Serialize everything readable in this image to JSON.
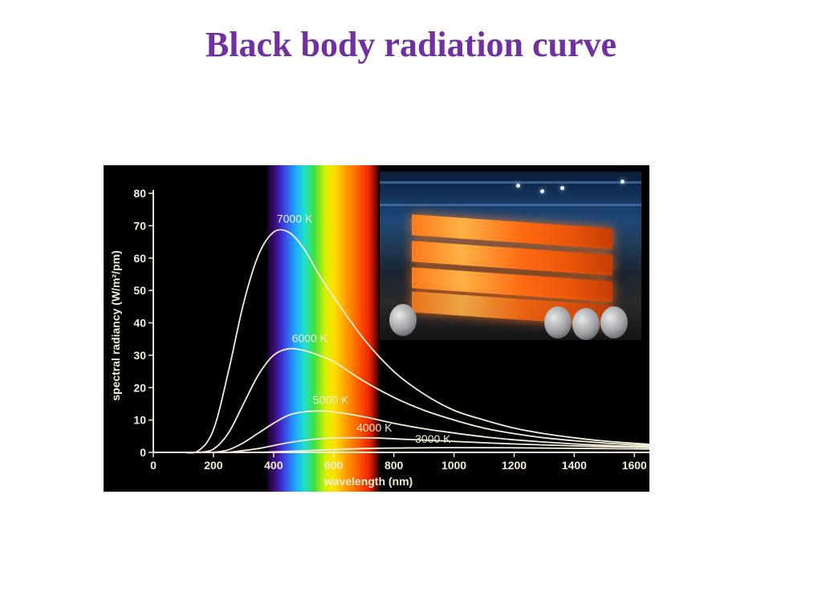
{
  "page": {
    "title": "Black body radiation curve",
    "title_color": "#7030a0"
  },
  "figure": {
    "photo_inset": "hot-steel-slabs-photo",
    "visible_spectrum_band_nm": [
      380,
      750
    ]
  },
  "chart_data": {
    "type": "line",
    "title": "",
    "xlabel": "wavelength (nm)",
    "ylabel": "spectral radiancy (W/m²/pm)",
    "xlim": [
      0,
      1650
    ],
    "ylim": [
      0,
      80
    ],
    "xticks": [
      0,
      200,
      400,
      600,
      800,
      1000,
      1200,
      1400,
      1600
    ],
    "yticks": [
      0,
      10,
      20,
      30,
      40,
      50,
      60,
      70,
      80
    ],
    "grid": false,
    "line_color": "#f2eed8",
    "background": "#000000",
    "series": [
      {
        "name": "7000 K",
        "x": [
          100,
          150,
          200,
          250,
          300,
          350,
          400,
          450,
          500,
          550,
          600,
          700,
          800,
          900,
          1000,
          1100,
          1200,
          1300,
          1400,
          1500,
          1600,
          1650
        ],
        "y": [
          0,
          0.5,
          7,
          25,
          46,
          61,
          68,
          68,
          63,
          55,
          48,
          35,
          25,
          18,
          13,
          10,
          7.5,
          5.8,
          4.5,
          3.5,
          2.8,
          2.5
        ]
      },
      {
        "name": "6000 K",
        "x": [
          150,
          200,
          250,
          300,
          350,
          400,
          450,
          500,
          550,
          600,
          700,
          800,
          900,
          1000,
          1100,
          1200,
          1300,
          1400,
          1500,
          1600,
          1650
        ],
        "y": [
          0,
          1,
          6,
          15,
          24,
          30,
          32,
          31.5,
          30,
          28,
          22,
          17,
          13,
          10,
          7.5,
          5.8,
          4.5,
          3.6,
          2.9,
          2.3,
          2.1
        ]
      },
      {
        "name": "5000 K",
        "x": [
          200,
          250,
          300,
          350,
          400,
          450,
          500,
          550,
          600,
          700,
          800,
          900,
          1000,
          1100,
          1200,
          1300,
          1400,
          1500,
          1600,
          1650
        ],
        "y": [
          0,
          0.8,
          3,
          6,
          9,
          11.5,
          12.5,
          12.8,
          12.5,
          11,
          9,
          7.3,
          6,
          4.8,
          3.9,
          3.2,
          2.6,
          2.2,
          1.8,
          1.7
        ]
      },
      {
        "name": "4000 K",
        "x": [
          250,
          350,
          450,
          550,
          650,
          750,
          850,
          1000,
          1200,
          1400,
          1600,
          1650
        ],
        "y": [
          0,
          1.2,
          3,
          4.2,
          4.5,
          4.4,
          4,
          3.4,
          2.6,
          2,
          1.6,
          1.5
        ]
      },
      {
        "name": "3000 K",
        "x": [
          350,
          500,
          700,
          900,
          1000,
          1200,
          1400,
          1600,
          1650
        ],
        "y": [
          0,
          0.5,
          1.2,
          1.4,
          1.45,
          1.4,
          1.25,
          1.1,
          1.05
        ]
      }
    ],
    "curve_labels": [
      {
        "text": "7000 K",
        "x": 470,
        "y": 71
      },
      {
        "text": "6000 K",
        "x": 520,
        "y": 34
      },
      {
        "text": "5000 K",
        "x": 590,
        "y": 15
      },
      {
        "text": "4000 K",
        "x": 735,
        "y": 6.5
      },
      {
        "text": "3000 K",
        "x": 930,
        "y": 3
      }
    ]
  }
}
